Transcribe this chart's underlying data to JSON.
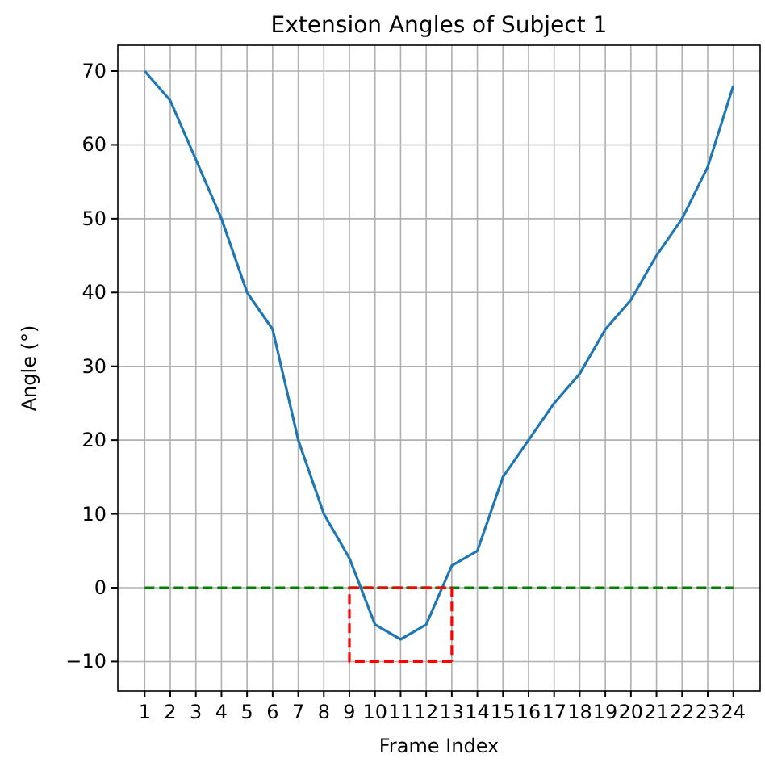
{
  "chart_data": {
    "type": "line",
    "title": "Extension Angles of Subject 1",
    "xlabel": "Frame Index",
    "ylabel": "Angle (°)",
    "xlim": [
      -0.05,
      25.05
    ],
    "xticks": [
      1,
      2,
      3,
      4,
      5,
      6,
      7,
      8,
      9,
      10,
      11,
      12,
      13,
      14,
      15,
      16,
      17,
      18,
      19,
      20,
      21,
      22,
      23,
      24
    ],
    "ylim": [
      -14,
      73.5
    ],
    "yticks": [
      -10,
      0,
      10,
      20,
      30,
      40,
      50,
      60,
      70
    ],
    "grid": true,
    "marker": "none",
    "series": [
      {
        "color": "#1f77b4",
        "line_style": "solid",
        "x": [
          1,
          2,
          3,
          4,
          5,
          6,
          7,
          8,
          9,
          10,
          11,
          12,
          13,
          14,
          15,
          16,
          17,
          18,
          19,
          20,
          21,
          22,
          23,
          24
        ],
        "values": [
          70,
          66,
          58,
          50,
          40,
          35,
          20,
          10,
          4,
          -5,
          -7,
          -5,
          3,
          5,
          15,
          20,
          25,
          29,
          35,
          39,
          45,
          50,
          57,
          68
        ]
      },
      {
        "color": "#008000",
        "line_style": "dashed",
        "x": [
          1,
          24
        ],
        "values": [
          0,
          0
        ]
      },
      {
        "color": "#ff0000",
        "line_style": "dashed",
        "x": [
          9,
          13,
          13
        ],
        "values": [
          0,
          0,
          -10
        ]
      },
      {
        "color": "#ff0000",
        "line_style": "dashed",
        "x": [
          13,
          9,
          9
        ],
        "values": [
          -10,
          -10,
          0
        ]
      }
    ]
  }
}
